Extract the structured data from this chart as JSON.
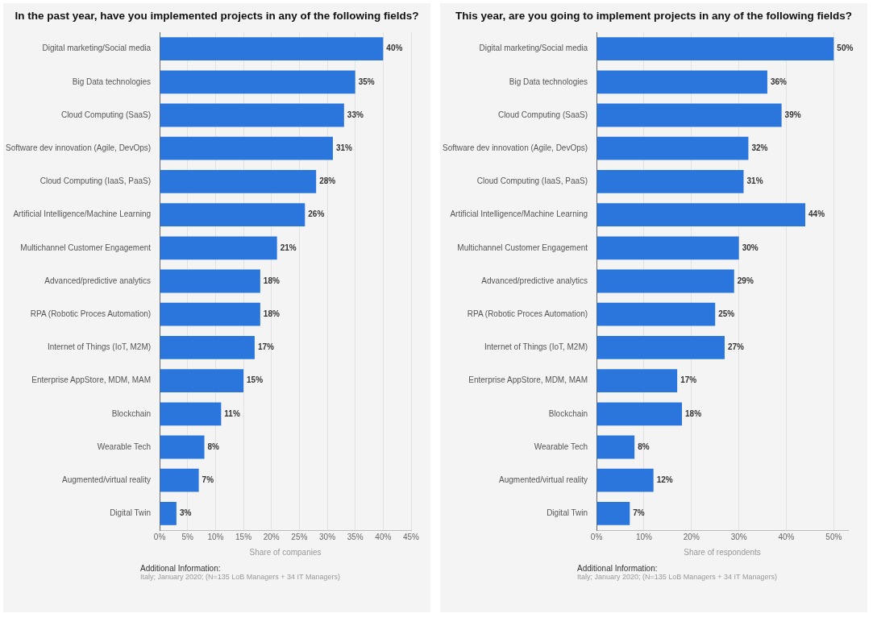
{
  "chart_data": [
    {
      "type": "bar",
      "orientation": "horizontal",
      "title": "In the past year, have you implemented projects in any of the following fields?",
      "xlabel": "Share of companies",
      "categories": [
        "Digital marketing/Social media",
        "Big Data technologies",
        "Cloud Computing (SaaS)",
        "Software dev innovation (Agile, DevOps)",
        "Cloud Computing (IaaS, PaaS)",
        "Artificial Intelligence/Machine Learning",
        "Multichannel Customer Engagement",
        "Advanced/predictive analytics",
        "RPA (Robotic Proces Automation)",
        "Internet of Things (IoT, M2M)",
        "Enterprise AppStore, MDM, MAM",
        "Blockchain",
        "Wearable Tech",
        "Augmented/virtual reality",
        "Digital Twin"
      ],
      "values": [
        40,
        35,
        33,
        31,
        28,
        26,
        21,
        18,
        18,
        17,
        15,
        11,
        8,
        7,
        3
      ],
      "value_labels": [
        "40%",
        "35%",
        "33%",
        "31%",
        "28%",
        "26%",
        "21%",
        "18%",
        "18%",
        "17%",
        "15%",
        "11%",
        "8%",
        "7%",
        "3%"
      ],
      "color": "#2a76dd",
      "xlim": [
        0,
        45
      ],
      "xticks": [
        {
          "value": 0,
          "label": "0%"
        },
        {
          "value": 5,
          "label": "5%"
        },
        {
          "value": 10,
          "label": "10%"
        },
        {
          "value": 15,
          "label": "15%"
        },
        {
          "value": 20,
          "label": "20%"
        },
        {
          "value": 25,
          "label": "25%"
        },
        {
          "value": 30,
          "label": "30%"
        },
        {
          "value": 35,
          "label": "35%"
        },
        {
          "value": 40,
          "label": "40%"
        },
        {
          "value": 45,
          "label": "45%"
        }
      ],
      "grid": "x",
      "legend": false,
      "annotations": [
        "Additional Information:",
        "Italy; January 2020; (N=135 LoB Managers + 34 IT Managers)"
      ]
    },
    {
      "type": "bar",
      "orientation": "horizontal",
      "title": "This year, are you going to implement projects in any of the following fields?",
      "xlabel": "Share of respondents",
      "categories": [
        "Digital marketing/Social media",
        "Big Data technologies",
        "Cloud Computing (SaaS)",
        "Software dev innovation (Agile, DevOps)",
        "Cloud Computing (IaaS, PaaS)",
        "Artificial Intelligence/Machine Learning",
        "Multichannel Customer Engagement",
        "Advanced/predictive analytics",
        "RPA (Robotic Proces Automation)",
        "Internet of Things (IoT, M2M)",
        "Enterprise AppStore, MDM, MAM",
        "Blockchain",
        "Wearable Tech",
        "Augmented/virtual reality",
        "Digital Twin"
      ],
      "values": [
        50,
        36,
        39,
        32,
        31,
        44,
        30,
        29,
        25,
        27,
        17,
        18,
        8,
        12,
        7
      ],
      "value_labels": [
        "50%",
        "36%",
        "39%",
        "32%",
        "31%",
        "44%",
        "30%",
        "29%",
        "25%",
        "27%",
        "17%",
        "18%",
        "8%",
        "12%",
        "7%"
      ],
      "color": "#2a76dd",
      "xlim": [
        0,
        53
      ],
      "xticks": [
        {
          "value": 0,
          "label": "0%"
        },
        {
          "value": 10,
          "label": "10%"
        },
        {
          "value": 20,
          "label": "20%"
        },
        {
          "value": 30,
          "label": "30%"
        },
        {
          "value": 40,
          "label": "40%"
        },
        {
          "value": 50,
          "label": "50%"
        }
      ],
      "grid": "x",
      "legend": false,
      "annotations": [
        "Additional Information:",
        "Italy; January 2020; (N=135 LoB Managers + 34 IT Managers)"
      ]
    }
  ]
}
